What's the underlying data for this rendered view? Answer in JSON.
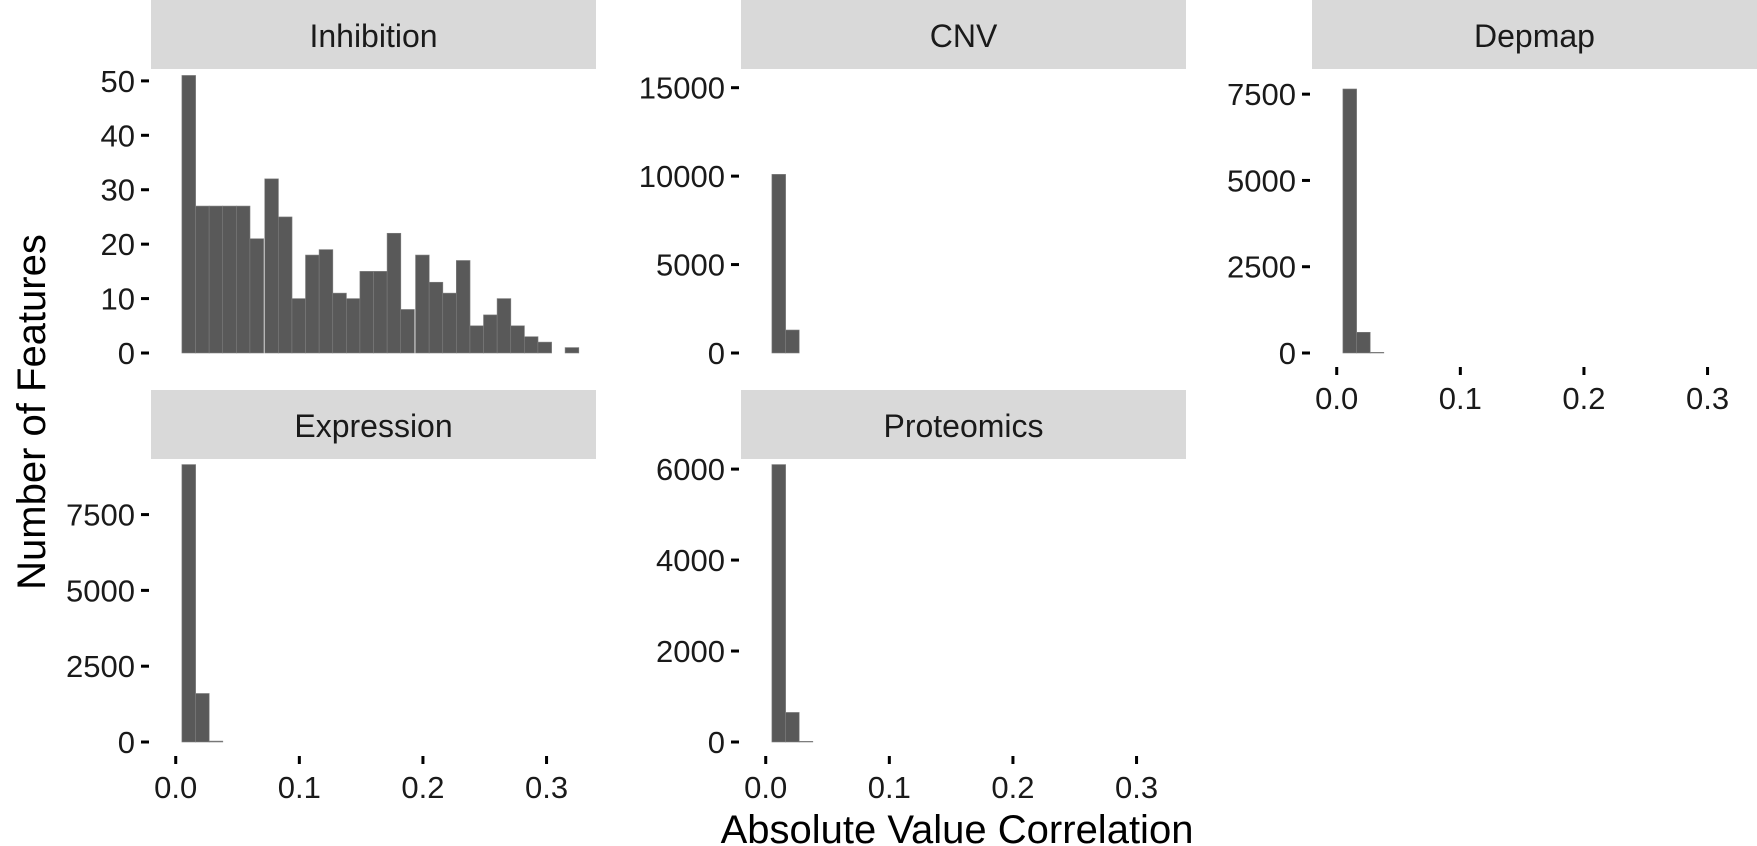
{
  "figure": {
    "xlabel": "Absolute Value Correlation",
    "ylabel": "Number of Features"
  },
  "colors": {
    "bar_fill": "#595959",
    "bar_edge": "#808080",
    "strip_background": "#d9d9d9",
    "text": "#1a1a1a",
    "tick": "#000000"
  },
  "chart_data": [
    {
      "type": "bar",
      "title": "Inhibition",
      "bin_width": 0.0111,
      "x_bins_start": [
        0.005,
        0.016,
        0.027,
        0.038,
        0.049,
        0.06,
        0.072,
        0.083,
        0.094,
        0.105,
        0.116,
        0.127,
        0.138,
        0.149,
        0.16,
        0.171,
        0.182,
        0.194,
        0.205,
        0.216,
        0.227,
        0.238,
        0.249,
        0.26,
        0.271,
        0.282,
        0.293,
        0.304,
        0.315
      ],
      "values": [
        51,
        27,
        27,
        27,
        27,
        21,
        32,
        25,
        10,
        18,
        19,
        11,
        10,
        15,
        15,
        22,
        8,
        18,
        13,
        11,
        17,
        5,
        7,
        10,
        5,
        3,
        2,
        0,
        1
      ],
      "xlim": [
        -0.02,
        0.34
      ],
      "ylim": [
        0,
        52
      ],
      "yticks": [
        0,
        10,
        20,
        30,
        40,
        50
      ],
      "xticks": [],
      "xtick_labels": []
    },
    {
      "type": "bar",
      "title": "CNV",
      "bin_width": 0.0111,
      "x_bins_start": [
        0.005,
        0.016,
        0.027
      ],
      "values": [
        10100,
        1300,
        0
      ],
      "xlim": [
        -0.02,
        0.34
      ],
      "ylim": [
        0,
        16000
      ],
      "yticks": [
        0,
        5000,
        10000,
        15000
      ],
      "xticks": [],
      "xtick_labels": []
    },
    {
      "type": "bar",
      "title": "Depmap",
      "bin_width": 0.0111,
      "x_bins_start": [
        0.005,
        0.016,
        0.027
      ],
      "values": [
        7650,
        600,
        20
      ],
      "xlim": [
        -0.02,
        0.34
      ],
      "ylim": [
        0,
        8200
      ],
      "yticks": [
        0,
        2500,
        5000,
        7500
      ],
      "xticks": [
        0.0,
        0.1,
        0.2,
        0.3
      ],
      "xtick_labels": [
        "0.0",
        "0.1",
        "0.2",
        "0.3"
      ]
    },
    {
      "type": "bar",
      "title": "Expression",
      "bin_width": 0.0111,
      "x_bins_start": [
        0.005,
        0.016,
        0.027
      ],
      "values": [
        9150,
        1600,
        30
      ],
      "xlim": [
        -0.02,
        0.34
      ],
      "ylim": [
        0,
        9300
      ],
      "yticks": [
        0,
        2500,
        5000,
        7500
      ],
      "xticks": [
        0.0,
        0.1,
        0.2,
        0.3
      ],
      "xtick_labels": [
        "0.0",
        "0.1",
        "0.2",
        "0.3"
      ]
    },
    {
      "type": "bar",
      "title": "Proteomics",
      "bin_width": 0.0111,
      "x_bins_start": [
        0.005,
        0.016,
        0.027
      ],
      "values": [
        6100,
        650,
        15
      ],
      "xlim": [
        -0.02,
        0.34
      ],
      "ylim": [
        0,
        6200
      ],
      "yticks": [
        0,
        2000,
        4000,
        6000
      ],
      "xticks": [
        0.0,
        0.1,
        0.2,
        0.3
      ],
      "xtick_labels": [
        "0.0",
        "0.1",
        "0.2",
        "0.3"
      ]
    }
  ]
}
